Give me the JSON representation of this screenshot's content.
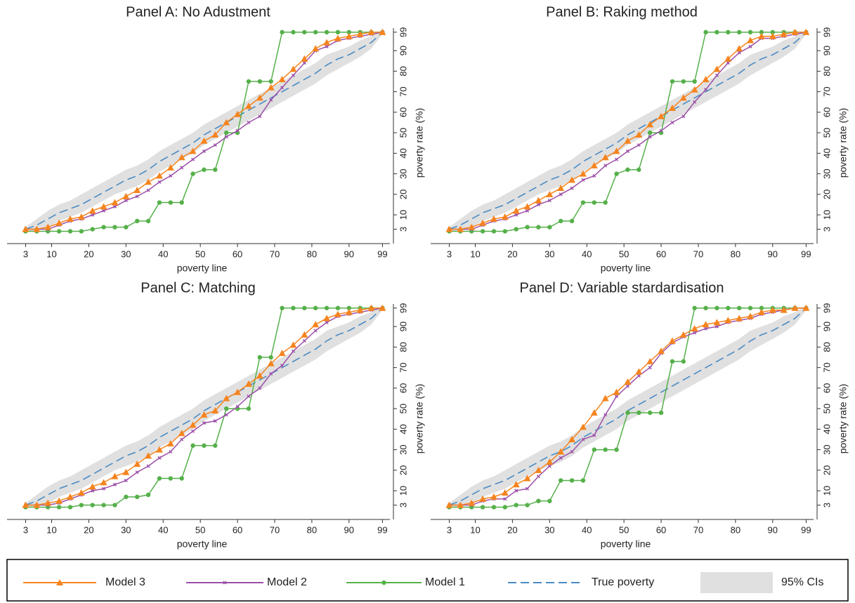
{
  "chart_data": [
    {
      "type": "line",
      "title": "Panel A: No Adustment",
      "x_label": "poverty line",
      "y_label": "poverty rate (%)",
      "x": [
        3,
        6,
        9,
        12,
        15,
        18,
        21,
        24,
        27,
        30,
        33,
        36,
        39,
        42,
        45,
        48,
        51,
        54,
        57,
        60,
        63,
        66,
        69,
        72,
        75,
        78,
        81,
        84,
        87,
        90,
        93,
        96,
        99
      ],
      "xlim": [
        -2,
        101
      ],
      "ylim": [
        -4,
        101
      ],
      "xticks": [
        3,
        10,
        20,
        30,
        40,
        50,
        60,
        70,
        80,
        90,
        99
      ],
      "yticks": [
        3,
        10,
        20,
        30,
        40,
        50,
        60,
        70,
        80,
        90,
        99
      ],
      "series": [
        {
          "name": "Model 3",
          "color": "#f5841f",
          "marker": "triangle",
          "linestyle": "solid",
          "values": [
            3,
            3,
            4,
            6,
            8,
            9,
            12,
            14,
            16,
            19,
            22,
            26,
            29,
            33,
            38,
            41,
            46,
            49,
            55,
            59,
            63,
            67,
            72,
            76,
            81,
            86,
            91,
            94,
            96,
            97,
            98,
            99,
            99
          ]
        },
        {
          "name": "Model 2",
          "color": "#9b4fa8",
          "marker": "x",
          "linestyle": "solid",
          "values": [
            3,
            3,
            3,
            5,
            7,
            8,
            10,
            12,
            14,
            17,
            19,
            22,
            26,
            29,
            33,
            37,
            41,
            44,
            48,
            51,
            55,
            58,
            66,
            72,
            78,
            84,
            90,
            92,
            95,
            96,
            97,
            98,
            99
          ]
        },
        {
          "name": "Model 1",
          "color": "#55b04a",
          "marker": "circle",
          "linestyle": "solid",
          "values": [
            2,
            2,
            2,
            2,
            2,
            2,
            3,
            4,
            4,
            4,
            7,
            7,
            16,
            16,
            16,
            30,
            32,
            32,
            50,
            50,
            75,
            75,
            75,
            99,
            99,
            99,
            99,
            99,
            99,
            99,
            99,
            99,
            99
          ]
        },
        {
          "name": "True poverty",
          "color": "#4a8bc4",
          "marker": "none",
          "linestyle": "dashed",
          "values": [
            3,
            5,
            8,
            11,
            13,
            15,
            18,
            21,
            24,
            27,
            29,
            32,
            36,
            39,
            42,
            45,
            49,
            52,
            55,
            58,
            61,
            64,
            67,
            70,
            73,
            76,
            79,
            83,
            86,
            88,
            91,
            94,
            99
          ]
        }
      ],
      "band": {
        "name": "95% CIs",
        "color": "#e0e0e0",
        "lower": [
          2,
          2,
          4,
          7,
          9,
          11,
          14,
          17,
          20,
          22,
          24,
          27,
          31,
          34,
          37,
          40,
          44,
          47,
          50,
          53,
          56,
          59,
          62,
          65,
          68,
          71,
          74,
          78,
          81,
          84,
          87,
          91,
          98
        ],
        "upper": [
          4,
          8,
          12,
          15,
          17,
          20,
          23,
          26,
          29,
          32,
          34,
          37,
          41,
          44,
          47,
          50,
          54,
          57,
          60,
          63,
          66,
          69,
          72,
          75,
          78,
          81,
          84,
          88,
          90,
          92,
          95,
          97,
          100
        ]
      }
    },
    {
      "type": "line",
      "title": "Panel B: Raking method",
      "x_label": "poverty line",
      "y_label": "poverty rate (%)",
      "x": [
        3,
        6,
        9,
        12,
        15,
        18,
        21,
        24,
        27,
        30,
        33,
        36,
        39,
        42,
        45,
        48,
        51,
        54,
        57,
        60,
        63,
        66,
        69,
        72,
        75,
        78,
        81,
        84,
        87,
        90,
        93,
        96,
        99
      ],
      "xlim": [
        -2,
        101
      ],
      "ylim": [
        -4,
        101
      ],
      "xticks": [
        3,
        10,
        20,
        30,
        40,
        50,
        60,
        70,
        80,
        90,
        99
      ],
      "yticks": [
        3,
        10,
        20,
        30,
        40,
        50,
        60,
        70,
        80,
        90,
        99
      ],
      "series": [
        {
          "color": "#f5841f",
          "marker": "triangle",
          "linestyle": "solid",
          "values": [
            3,
            3,
            4,
            6,
            8,
            9,
            12,
            14,
            17,
            20,
            23,
            27,
            30,
            34,
            38,
            41,
            46,
            49,
            54,
            58,
            62,
            67,
            71,
            76,
            81,
            86,
            91,
            95,
            97,
            97,
            98,
            99,
            99
          ]
        },
        {
          "color": "#9b4fa8",
          "marker": "x",
          "linestyle": "solid",
          "values": [
            3,
            3,
            3,
            5,
            7,
            8,
            10,
            12,
            15,
            17,
            20,
            23,
            27,
            29,
            34,
            37,
            41,
            44,
            48,
            51,
            55,
            58,
            65,
            71,
            78,
            84,
            89,
            92,
            96,
            96,
            97,
            98,
            99
          ]
        },
        {
          "color": "#55b04a",
          "marker": "circle",
          "linestyle": "solid",
          "values": [
            2,
            2,
            2,
            2,
            2,
            2,
            3,
            4,
            4,
            4,
            7,
            7,
            16,
            16,
            16,
            30,
            32,
            32,
            50,
            50,
            75,
            75,
            75,
            99,
            99,
            99,
            99,
            99,
            99,
            99,
            99,
            99,
            99
          ]
        },
        {
          "color": "#4a8bc4",
          "marker": "none",
          "linestyle": "dashed",
          "values": [
            3,
            5,
            8,
            11,
            13,
            15,
            18,
            21,
            24,
            27,
            29,
            32,
            36,
            39,
            42,
            45,
            49,
            52,
            55,
            58,
            61,
            64,
            67,
            70,
            73,
            76,
            79,
            83,
            86,
            88,
            91,
            94,
            99
          ]
        }
      ],
      "band": {
        "color": "#e0e0e0",
        "lower": [
          2,
          2,
          4,
          7,
          9,
          11,
          14,
          17,
          20,
          22,
          24,
          27,
          31,
          34,
          37,
          40,
          44,
          47,
          50,
          53,
          56,
          59,
          62,
          65,
          68,
          71,
          74,
          78,
          81,
          84,
          87,
          91,
          98
        ],
        "upper": [
          4,
          8,
          12,
          15,
          17,
          20,
          23,
          26,
          29,
          32,
          34,
          37,
          41,
          44,
          47,
          50,
          54,
          57,
          60,
          63,
          66,
          69,
          72,
          75,
          78,
          81,
          84,
          88,
          90,
          92,
          95,
          97,
          100
        ]
      }
    },
    {
      "type": "line",
      "title": "Panel C: Matching",
      "x_label": "poverty line",
      "y_label": "poverty rate (%)",
      "x": [
        3,
        6,
        9,
        12,
        15,
        18,
        21,
        24,
        27,
        30,
        33,
        36,
        39,
        42,
        45,
        48,
        51,
        54,
        57,
        60,
        63,
        66,
        69,
        72,
        75,
        78,
        81,
        84,
        87,
        90,
        93,
        96,
        99
      ],
      "xlim": [
        -2,
        101
      ],
      "ylim": [
        -4,
        101
      ],
      "xticks": [
        3,
        10,
        20,
        30,
        40,
        50,
        60,
        70,
        80,
        90,
        99
      ],
      "yticks": [
        3,
        10,
        20,
        30,
        40,
        50,
        60,
        70,
        80,
        90,
        99
      ],
      "series": [
        {
          "color": "#f5841f",
          "marker": "triangle",
          "linestyle": "solid",
          "values": [
            3,
            3,
            4,
            5,
            7,
            9,
            12,
            14,
            17,
            19,
            23,
            27,
            30,
            33,
            38,
            42,
            47,
            49,
            55,
            58,
            62,
            66,
            72,
            77,
            81,
            86,
            91,
            94,
            96,
            97,
            98,
            99,
            99
          ]
        },
        {
          "color": "#9b4fa8",
          "marker": "x",
          "linestyle": "solid",
          "values": [
            3,
            3,
            3,
            4,
            6,
            8,
            10,
            11,
            13,
            15,
            19,
            22,
            26,
            29,
            35,
            39,
            43,
            44,
            47,
            51,
            56,
            60,
            67,
            71,
            78,
            83,
            88,
            92,
            95,
            96,
            97,
            98,
            99
          ]
        },
        {
          "color": "#55b04a",
          "marker": "circle",
          "linestyle": "solid",
          "values": [
            2,
            2,
            2,
            2,
            2,
            3,
            3,
            3,
            3,
            7,
            7,
            8,
            16,
            16,
            16,
            32,
            32,
            32,
            50,
            50,
            50,
            75,
            75,
            99,
            99,
            99,
            99,
            99,
            99,
            99,
            99,
            99,
            99
          ]
        },
        {
          "color": "#4a8bc4",
          "marker": "none",
          "linestyle": "dashed",
          "values": [
            3,
            5,
            8,
            11,
            13,
            15,
            18,
            21,
            24,
            27,
            29,
            32,
            36,
            39,
            42,
            45,
            49,
            52,
            55,
            58,
            61,
            64,
            67,
            70,
            73,
            76,
            79,
            83,
            86,
            88,
            91,
            94,
            99
          ]
        }
      ],
      "band": {
        "color": "#e0e0e0",
        "lower": [
          2,
          2,
          4,
          7,
          9,
          11,
          14,
          17,
          20,
          22,
          24,
          27,
          31,
          34,
          37,
          40,
          44,
          47,
          50,
          53,
          56,
          59,
          62,
          65,
          68,
          71,
          74,
          78,
          81,
          84,
          87,
          91,
          98
        ],
        "upper": [
          4,
          8,
          12,
          15,
          17,
          20,
          23,
          26,
          29,
          32,
          34,
          37,
          41,
          44,
          47,
          50,
          54,
          57,
          60,
          63,
          66,
          69,
          72,
          75,
          78,
          81,
          84,
          88,
          90,
          92,
          95,
          97,
          100
        ]
      }
    },
    {
      "type": "line",
      "title": "Panel D: Variable stardardisation",
      "x_label": "poverty line",
      "y_label": "poverty rate (%)",
      "x": [
        3,
        6,
        9,
        12,
        15,
        18,
        21,
        24,
        27,
        30,
        33,
        36,
        39,
        42,
        45,
        48,
        51,
        54,
        57,
        60,
        63,
        66,
        69,
        72,
        75,
        78,
        81,
        84,
        87,
        90,
        93,
        96,
        99
      ],
      "xlim": [
        -2,
        101
      ],
      "ylim": [
        -4,
        101
      ],
      "xticks": [
        3,
        10,
        20,
        30,
        40,
        50,
        60,
        70,
        80,
        90,
        99
      ],
      "yticks": [
        3,
        10,
        20,
        30,
        40,
        50,
        60,
        70,
        80,
        90,
        99
      ],
      "series": [
        {
          "color": "#f5841f",
          "marker": "triangle",
          "linestyle": "solid",
          "values": [
            3,
            3,
            4,
            6,
            7,
            9,
            13,
            16,
            20,
            24,
            29,
            35,
            41,
            48,
            55,
            58,
            63,
            68,
            73,
            78,
            83,
            86,
            89,
            91,
            92,
            93,
            94,
            95,
            97,
            98,
            98,
            99,
            99
          ]
        },
        {
          "color": "#9b4fa8",
          "marker": "x",
          "linestyle": "solid",
          "values": [
            3,
            3,
            3,
            5,
            6,
            6,
            10,
            11,
            17,
            22,
            26,
            29,
            35,
            37,
            47,
            56,
            61,
            66,
            70,
            77,
            82,
            85,
            87,
            89,
            90,
            92,
            93,
            94,
            96,
            97,
            98,
            99,
            99
          ]
        },
        {
          "color": "#55b04a",
          "marker": "circle",
          "linestyle": "solid",
          "values": [
            2,
            2,
            2,
            2,
            2,
            2,
            3,
            3,
            5,
            5,
            15,
            15,
            15,
            30,
            30,
            30,
            48,
            48,
            48,
            48,
            73,
            73,
            99,
            99,
            99,
            99,
            99,
            99,
            99,
            99,
            99,
            99,
            99
          ]
        },
        {
          "color": "#4a8bc4",
          "marker": "none",
          "linestyle": "dashed",
          "values": [
            3,
            5,
            8,
            11,
            13,
            15,
            18,
            21,
            24,
            27,
            29,
            32,
            36,
            39,
            42,
            45,
            49,
            52,
            55,
            58,
            61,
            64,
            67,
            70,
            73,
            76,
            79,
            83,
            86,
            88,
            91,
            94,
            99
          ]
        }
      ],
      "band": {
        "color": "#e0e0e0",
        "lower": [
          2,
          2,
          4,
          7,
          9,
          11,
          14,
          17,
          20,
          22,
          24,
          27,
          31,
          34,
          37,
          40,
          44,
          47,
          50,
          53,
          56,
          59,
          62,
          65,
          68,
          71,
          74,
          78,
          81,
          84,
          87,
          91,
          98
        ],
        "upper": [
          4,
          8,
          12,
          15,
          17,
          20,
          23,
          26,
          29,
          32,
          34,
          37,
          41,
          44,
          47,
          50,
          54,
          57,
          60,
          63,
          66,
          69,
          72,
          75,
          78,
          81,
          84,
          88,
          90,
          92,
          95,
          97,
          100
        ]
      }
    }
  ]
}
